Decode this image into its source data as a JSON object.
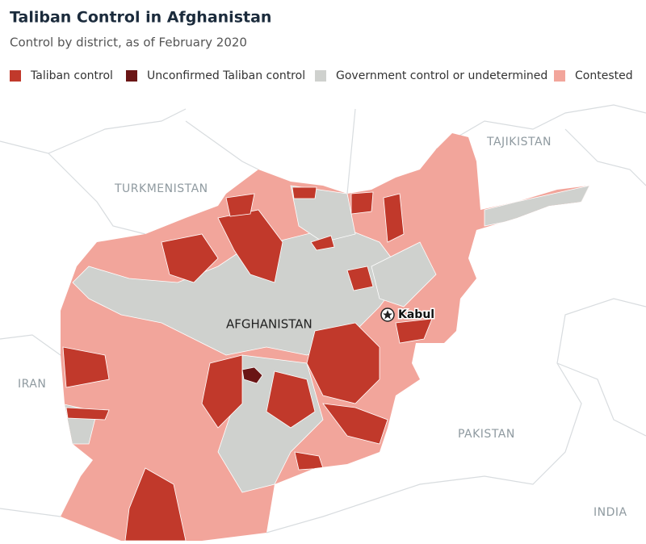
{
  "title": "Taliban Control in Afghanistan",
  "subtitle": "Control by district, as of February 2020",
  "legend": [
    {
      "label": "Taliban control",
      "color": "#c1392b"
    },
    {
      "label": "Unconfirmed Taliban control",
      "color": "#6a1515"
    },
    {
      "label": "Government control or undetermined",
      "color": "#cfd1ce"
    },
    {
      "label": "Contested",
      "color": "#f2a59b"
    }
  ],
  "map_labels": {
    "turkmenistan": "TURKMENISTAN",
    "tajikistan": "TAJIKISTAN",
    "iran": "IRAN",
    "pakistan": "PAKISTAN",
    "india": "INDIA",
    "afghanistan": "AFGHANISTAN",
    "kabul": "Kabul"
  }
}
